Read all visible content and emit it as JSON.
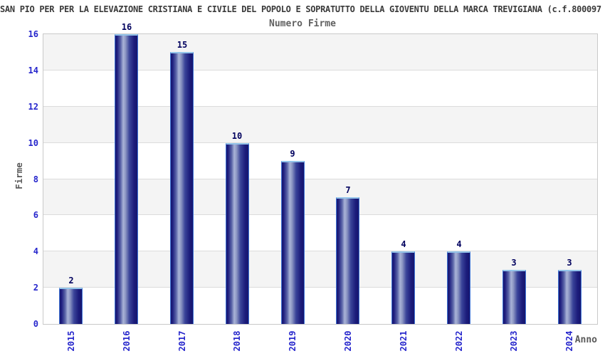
{
  "chart_data": {
    "type": "bar",
    "title": "SAN PIO PER PER LA ELEVAZIONE CRISTIANA E CIVILE DEL POPOLO E SOPRATUTTO DELLA GIOVENTU DELLA MARCA TREVIGIANA (c.f.800097",
    "subtitle": "Numero Firme",
    "categories": [
      "2015",
      "2016",
      "2017",
      "2018",
      "2019",
      "2020",
      "2021",
      "2022",
      "2023",
      "2024"
    ],
    "values": [
      2,
      16,
      15,
      10,
      9,
      7,
      4,
      4,
      3,
      3
    ],
    "xlabel": "Anno",
    "ylabel": "Firme",
    "ylim": [
      0,
      16
    ],
    "yticks": [
      0,
      2,
      4,
      6,
      8,
      10,
      12,
      14,
      16
    ],
    "grid": "horizontal gridlines every 2 units with alternating gray/white bands",
    "legend": "none",
    "colors": {
      "bar_fill_dark": "#16166e",
      "bar_fill_highlight": "#a9b3d7",
      "bar_border": "#3f74d6",
      "bar_top_cap": "#93c4ea",
      "axis_tick_text": "#2626cc",
      "value_label_text": "#00005e",
      "title_text": "#3a3a3a",
      "axis_title_text": "#5a5a5a",
      "band_gray": "#f4f4f4",
      "gridline": "#dcdcdc",
      "plot_border": "#c9c9c9"
    }
  }
}
